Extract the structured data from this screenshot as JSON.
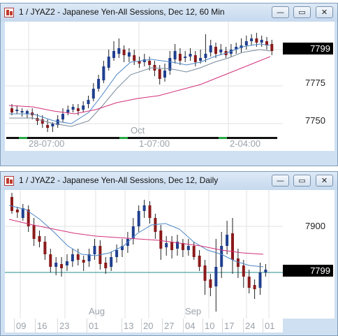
{
  "top_window": {
    "title": "1 / JYAZ2 - Japanese Yen-All Sessions, Dec 12, 60 Min",
    "buttons": {
      "minimize": "—",
      "maximize": "▭",
      "close": "✕"
    },
    "price_tag": "7799",
    "y_ticks": [
      "7775",
      "7750"
    ],
    "period_label": "Oct",
    "time_labels": [
      "28-07:00",
      "1-07:00",
      "2-04:00"
    ],
    "colors": {
      "up": "#1f3f8f",
      "down": "#8b1a1a",
      "ma_fast": "#4d87c7",
      "ma_slow": "#d2307a",
      "ma_mid": "#7a8a9a",
      "session": "#27a844"
    }
  },
  "bottom_window": {
    "title": "1 / JYAZ2 - Japanese Yen-All Sessions, Dec 12, Daily",
    "buttons": {
      "minimize": "—",
      "maximize": "▭",
      "close": "✕"
    },
    "price_tag": "7799",
    "y_ticks": [
      "7900"
    ],
    "month_labels": [
      "Aug",
      "Sep"
    ],
    "date_labels": [
      "09",
      "16",
      "23",
      "01",
      "13",
      "20",
      "27",
      "04",
      "10",
      "17",
      "24",
      "01"
    ],
    "colors": {
      "up": "#1f3f8f",
      "down": "#8b1a1a",
      "ma_fast": "#4d87c7",
      "ma_slow": "#d2307a",
      "baseline": "#2a8a8a"
    }
  }
}
